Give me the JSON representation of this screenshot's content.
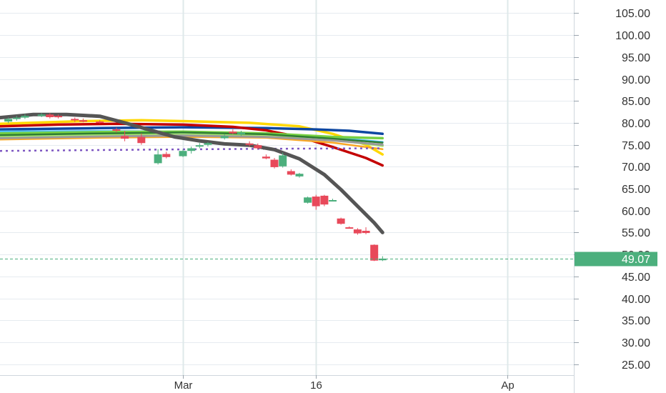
{
  "chart_data": {
    "type": "candlestick",
    "colors": {
      "up": "#4caf7d",
      "down": "#e8495a",
      "grid": "#e6ebf0",
      "last_price_line": "#4caf7d"
    },
    "y_axis": {
      "range": [
        22.5,
        108
      ],
      "tick_values": [
        25,
        30,
        35,
        40,
        45,
        50,
        55,
        60,
        65,
        70,
        75,
        80,
        85,
        90,
        95,
        100,
        105
      ],
      "tick_labels": [
        "25.00",
        "30.00",
        "35.00",
        "40.00",
        "45.00",
        "50.00",
        "55.00",
        "60.00",
        "65.00",
        "70.00",
        "75.00",
        "80.00",
        "85.00",
        "90.00",
        "95.00",
        "100.00",
        "105.00"
      ]
    },
    "x_axis": {
      "range": [
        -22,
        47
      ],
      "tick_values": [
        0,
        16,
        39
      ],
      "tick_labels": [
        "Mar",
        "16",
        "Ap"
      ]
    },
    "last_price": {
      "value": 49.07,
      "label": "49.07"
    },
    "candles": [
      {
        "x": -21,
        "open": 80.3,
        "high": 81.2,
        "low": 79.9,
        "close": 80.9
      },
      {
        "x": -20,
        "open": 80.9,
        "high": 81.6,
        "low": 80.5,
        "close": 81.2
      },
      {
        "x": -19,
        "open": 81.2,
        "high": 82.0,
        "low": 80.9,
        "close": 81.6
      },
      {
        "x": -17,
        "open": 81.6,
        "high": 82.2,
        "low": 81.3,
        "close": 81.9
      },
      {
        "x": -16,
        "open": 81.9,
        "high": 82.2,
        "low": 81.0,
        "close": 81.3
      },
      {
        "x": -15,
        "open": 81.6,
        "high": 81.9,
        "low": 81.0,
        "close": 81.4
      },
      {
        "x": -13,
        "open": 80.9,
        "high": 81.2,
        "low": 80.2,
        "close": 80.6
      },
      {
        "x": -12,
        "open": 80.6,
        "high": 81.0,
        "low": 80.1,
        "close": 80.5
      },
      {
        "x": -10,
        "open": 80.3,
        "high": 80.6,
        "low": 79.9,
        "close": 80.2
      },
      {
        "x": -8,
        "open": 78.5,
        "high": 78.9,
        "low": 77.8,
        "close": 78.2
      },
      {
        "x": -7,
        "open": 77.0,
        "high": 78.2,
        "low": 75.8,
        "close": 76.4
      },
      {
        "x": -5,
        "open": 76.8,
        "high": 77.6,
        "low": 75.0,
        "close": 75.4
      },
      {
        "x": -3,
        "open": 70.8,
        "high": 74.0,
        "low": 70.5,
        "close": 72.8
      },
      {
        "x": -2,
        "open": 72.9,
        "high": 73.4,
        "low": 71.9,
        "close": 72.2
      },
      {
        "x": 0,
        "open": 72.4,
        "high": 74.0,
        "low": 72.2,
        "close": 73.6
      },
      {
        "x": 1,
        "open": 73.6,
        "high": 74.6,
        "low": 73.0,
        "close": 74.2
      },
      {
        "x": 2,
        "open": 74.6,
        "high": 75.4,
        "low": 74.2,
        "close": 74.9
      },
      {
        "x": 3,
        "open": 75.0,
        "high": 75.6,
        "low": 74.6,
        "close": 75.4
      },
      {
        "x": 5,
        "open": 76.5,
        "high": 77.4,
        "low": 76.2,
        "close": 77.0
      },
      {
        "x": 6,
        "open": 78.0,
        "high": 78.5,
        "low": 77.4,
        "close": 77.6
      },
      {
        "x": 7,
        "open": 77.4,
        "high": 78.2,
        "low": 77.0,
        "close": 77.8
      },
      {
        "x": 8,
        "open": 75.3,
        "high": 75.8,
        "low": 74.6,
        "close": 75.0
      },
      {
        "x": 9,
        "open": 74.9,
        "high": 75.3,
        "low": 74.0,
        "close": 74.2
      },
      {
        "x": 10,
        "open": 72.3,
        "high": 72.8,
        "low": 71.7,
        "close": 71.9
      },
      {
        "x": 11,
        "open": 71.6,
        "high": 72.0,
        "low": 69.6,
        "close": 69.9
      },
      {
        "x": 12,
        "open": 70.1,
        "high": 73.2,
        "low": 69.8,
        "close": 72.6
      },
      {
        "x": 13,
        "open": 69.0,
        "high": 69.4,
        "low": 68.0,
        "close": 68.2
      },
      {
        "x": 14,
        "open": 67.8,
        "high": 68.6,
        "low": 67.5,
        "close": 68.4
      },
      {
        "x": 15,
        "open": 61.8,
        "high": 63.2,
        "low": 61.6,
        "close": 63.0
      },
      {
        "x": 16,
        "open": 63.2,
        "high": 63.6,
        "low": 60.2,
        "close": 61.0
      },
      {
        "x": 17,
        "open": 63.4,
        "high": 63.6,
        "low": 61.0,
        "close": 61.4
      },
      {
        "x": 18,
        "open": 62.4,
        "high": 62.7,
        "low": 62.1,
        "close": 62.4
      },
      {
        "x": 19,
        "open": 58.2,
        "high": 58.4,
        "low": 56.8,
        "close": 57.0
      },
      {
        "x": 20,
        "open": 56.2,
        "high": 56.4,
        "low": 55.9,
        "close": 56.0
      },
      {
        "x": 21,
        "open": 55.7,
        "high": 56.0,
        "low": 54.5,
        "close": 54.8
      },
      {
        "x": 22,
        "open": 55.4,
        "high": 56.2,
        "low": 54.6,
        "close": 54.9
      },
      {
        "x": 23,
        "open": 52.2,
        "high": 52.3,
        "low": 48.5,
        "close": 48.6
      },
      {
        "x": 24,
        "open": 48.7,
        "high": 49.6,
        "low": 48.5,
        "close": 49.07
      }
    ],
    "series": [
      {
        "type": "line",
        "color": "#ffd700",
        "width": 3.5,
        "points": [
          [
            -22,
            79.8
          ],
          [
            -12,
            80.4
          ],
          [
            -5,
            80.6
          ],
          [
            0,
            80.4
          ],
          [
            8,
            80.0
          ],
          [
            14,
            79.2
          ],
          [
            18,
            77.5
          ],
          [
            22,
            75.0
          ],
          [
            24,
            72.8
          ]
        ]
      },
      {
        "type": "line",
        "color": "#0d47a1",
        "width": 3.5,
        "points": [
          [
            -22,
            78.5
          ],
          [
            -10,
            78.8
          ],
          [
            0,
            79.0
          ],
          [
            10,
            78.8
          ],
          [
            16,
            78.5
          ],
          [
            20,
            78.2
          ],
          [
            24,
            77.5
          ]
        ]
      },
      {
        "type": "line",
        "color": "#c40000",
        "width": 3.5,
        "points": [
          [
            -22,
            79.2
          ],
          [
            -15,
            79.6
          ],
          [
            -8,
            79.8
          ],
          [
            0,
            79.6
          ],
          [
            6,
            79.1
          ],
          [
            10,
            78.3
          ],
          [
            14,
            76.8
          ],
          [
            18,
            74.5
          ],
          [
            22,
            72.0
          ],
          [
            24,
            70.3
          ]
        ]
      },
      {
        "type": "line",
        "color": "#4fc3f7",
        "width": 3,
        "points": [
          [
            -22,
            78.0
          ],
          [
            -10,
            78.1
          ],
          [
            0,
            78.0
          ],
          [
            10,
            77.6
          ],
          [
            18,
            76.6
          ],
          [
            24,
            75.6
          ]
        ]
      },
      {
        "type": "line",
        "color": "#76d043",
        "width": 3.5,
        "points": [
          [
            -22,
            77.6
          ],
          [
            -10,
            77.9
          ],
          [
            0,
            78.0
          ],
          [
            10,
            77.6
          ],
          [
            18,
            76.8
          ],
          [
            24,
            76.5
          ]
        ]
      },
      {
        "type": "line",
        "color": "#a5e66f",
        "width": 3.5,
        "points": [
          [
            -22,
            76.8
          ],
          [
            -10,
            77.2
          ],
          [
            0,
            77.3
          ],
          [
            10,
            77.0
          ],
          [
            18,
            76.2
          ],
          [
            24,
            74.8
          ]
        ]
      },
      {
        "type": "line",
        "color": "#2e7d32",
        "width": 2.5,
        "points": [
          [
            -22,
            77.2
          ],
          [
            -10,
            77.6
          ],
          [
            0,
            77.8
          ],
          [
            10,
            77.4
          ],
          [
            18,
            76.4
          ],
          [
            24,
            75.5
          ]
        ]
      },
      {
        "type": "line",
        "color": "#f9a825",
        "width": 2.5,
        "points": [
          [
            -22,
            76.2
          ],
          [
            -10,
            76.6
          ],
          [
            0,
            76.8
          ],
          [
            10,
            76.6
          ],
          [
            18,
            75.5
          ],
          [
            24,
            74.0
          ]
        ]
      },
      {
        "type": "line",
        "color": "#9a9a9a",
        "width": 3,
        "points": [
          [
            -22,
            76.5
          ],
          [
            -10,
            76.9
          ],
          [
            0,
            77.1
          ],
          [
            10,
            76.8
          ],
          [
            18,
            76.0
          ],
          [
            24,
            75.0
          ]
        ]
      },
      {
        "type": "line",
        "color": "#7e57c2",
        "width": 2.5,
        "dashed": true,
        "points": [
          [
            -22,
            73.6
          ],
          [
            -4,
            73.9
          ],
          [
            10,
            74.1
          ],
          [
            24,
            74.2
          ]
        ]
      },
      {
        "type": "line",
        "color": "#555555",
        "width": 5,
        "points": [
          [
            -22,
            81.2
          ],
          [
            -18,
            81.9
          ],
          [
            -14,
            81.9
          ],
          [
            -10,
            81.5
          ],
          [
            -7,
            80.0
          ],
          [
            -4,
            78.4
          ],
          [
            -1,
            76.8
          ],
          [
            2,
            75.9
          ],
          [
            5,
            75.2
          ],
          [
            8,
            74.9
          ],
          [
            11,
            73.9
          ],
          [
            14,
            71.8
          ],
          [
            17,
            68.2
          ],
          [
            19,
            64.8
          ],
          [
            21,
            61.0
          ],
          [
            23,
            57.2
          ],
          [
            24,
            55.0
          ]
        ]
      }
    ]
  }
}
